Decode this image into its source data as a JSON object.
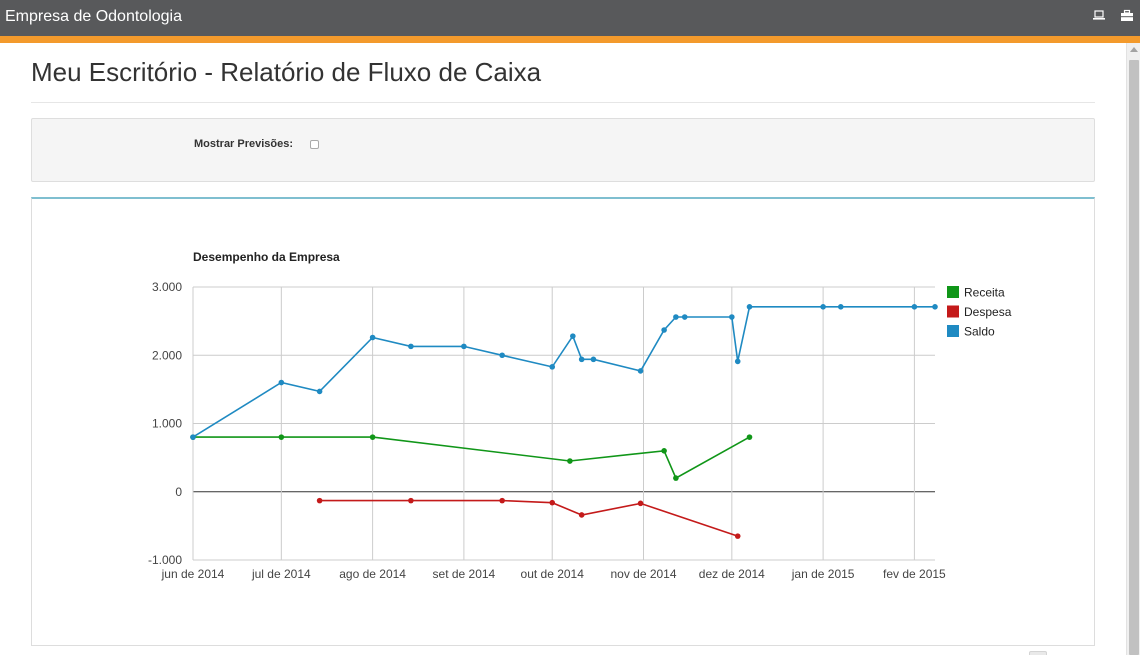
{
  "app": {
    "title": "Empresa de Odontologia",
    "icons": [
      "monitor-icon",
      "briefcase-icon"
    ]
  },
  "page": {
    "title": "Meu Escritório - Relatório de Fluxo de Caixa"
  },
  "filters": {
    "show_forecast_label": "Mostrar Previsões:",
    "show_forecast_checked": false
  },
  "colors": {
    "topbar": "#58595b",
    "accent": "#f39a2c",
    "receita": "#109618",
    "despesa": "#c41a1a",
    "saldo": "#1f8ac2"
  },
  "chart_data": {
    "type": "line",
    "title": "Desempenho da Empresa",
    "xlabel": "",
    "ylabel": "",
    "ylim": [
      -1000,
      3000
    ],
    "yticks": [
      {
        "value": 3000,
        "label": "3.000"
      },
      {
        "value": 2000,
        "label": "2.000"
      },
      {
        "value": 1000,
        "label": "1.000"
      },
      {
        "value": 0,
        "label": "0"
      },
      {
        "value": -1000,
        "label": "-1.000"
      }
    ],
    "xlim": [
      "2014-06-01",
      "2015-02-08"
    ],
    "xticks": [
      {
        "value": "2014-06-01",
        "label": "jun de 2014"
      },
      {
        "value": "2014-07-01",
        "label": "jul de 2014"
      },
      {
        "value": "2014-08-01",
        "label": "ago de 2014"
      },
      {
        "value": "2014-09-01",
        "label": "set de 2014"
      },
      {
        "value": "2014-10-01",
        "label": "out de 2014"
      },
      {
        "value": "2014-11-01",
        "label": "nov de 2014"
      },
      {
        "value": "2014-12-01",
        "label": "dez de 2014"
      },
      {
        "value": "2015-01-01",
        "label": "jan de 2015"
      },
      {
        "value": "2015-02-01",
        "label": "fev de 2015"
      }
    ],
    "grid": true,
    "legend_position": "right",
    "series": [
      {
        "name": "Receita",
        "color": "#109618",
        "points": [
          {
            "x": "2014-06-01",
            "y": 800
          },
          {
            "x": "2014-07-01",
            "y": 800
          },
          {
            "x": "2014-08-01",
            "y": 800
          },
          {
            "x": "2014-10-07",
            "y": 450
          },
          {
            "x": "2014-11-08",
            "y": 600
          },
          {
            "x": "2014-11-12",
            "y": 200
          },
          {
            "x": "2014-12-07",
            "y": 800
          }
        ]
      },
      {
        "name": "Despesa",
        "color": "#c41a1a",
        "points": [
          {
            "x": "2014-07-14",
            "y": -130
          },
          {
            "x": "2014-08-14",
            "y": -130
          },
          {
            "x": "2014-09-14",
            "y": -130
          },
          {
            "x": "2014-10-01",
            "y": -160
          },
          {
            "x": "2014-10-11",
            "y": -340
          },
          {
            "x": "2014-10-31",
            "y": -170
          },
          {
            "x": "2014-12-03",
            "y": -650
          }
        ]
      },
      {
        "name": "Saldo",
        "color": "#1f8ac2",
        "points": [
          {
            "x": "2014-06-01",
            "y": 800
          },
          {
            "x": "2014-07-01",
            "y": 1600
          },
          {
            "x": "2014-07-14",
            "y": 1470
          },
          {
            "x": "2014-08-01",
            "y": 2260
          },
          {
            "x": "2014-08-14",
            "y": 2130
          },
          {
            "x": "2014-09-01",
            "y": 2130
          },
          {
            "x": "2014-09-14",
            "y": 2000
          },
          {
            "x": "2014-10-01",
            "y": 1830
          },
          {
            "x": "2014-10-08",
            "y": 2280
          },
          {
            "x": "2014-10-11",
            "y": 1940
          },
          {
            "x": "2014-10-15",
            "y": 1940
          },
          {
            "x": "2014-10-31",
            "y": 1770
          },
          {
            "x": "2014-11-08",
            "y": 2370
          },
          {
            "x": "2014-11-12",
            "y": 2560
          },
          {
            "x": "2014-11-15",
            "y": 2560
          },
          {
            "x": "2014-12-01",
            "y": 2560
          },
          {
            "x": "2014-12-03",
            "y": 1910
          },
          {
            "x": "2014-12-07",
            "y": 2710
          },
          {
            "x": "2015-01-01",
            "y": 2710
          },
          {
            "x": "2015-01-07",
            "y": 2710
          },
          {
            "x": "2015-02-01",
            "y": 2710
          },
          {
            "x": "2015-02-08",
            "y": 2710
          }
        ]
      }
    ]
  }
}
